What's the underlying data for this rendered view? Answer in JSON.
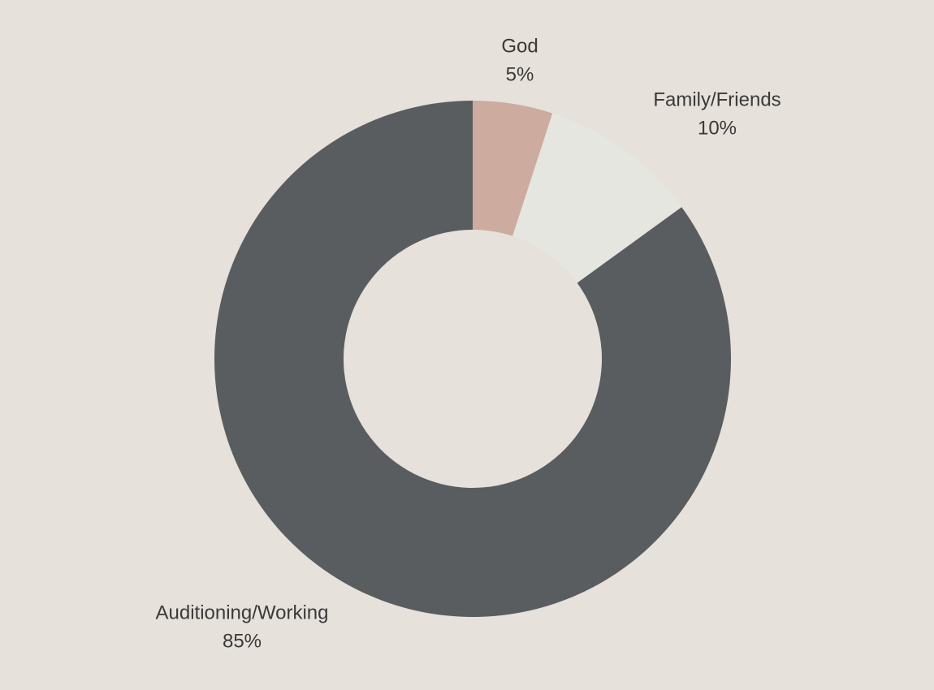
{
  "chart_data": {
    "type": "donut",
    "categories": [
      "God",
      "Family/Friends",
      "Auditioning/Working"
    ],
    "values": [
      5,
      10,
      85
    ],
    "value_labels": [
      "5%",
      "10%",
      "85%"
    ],
    "colors": [
      "#cdab9f",
      "#e6e6e0",
      "#5a5d60"
    ]
  }
}
